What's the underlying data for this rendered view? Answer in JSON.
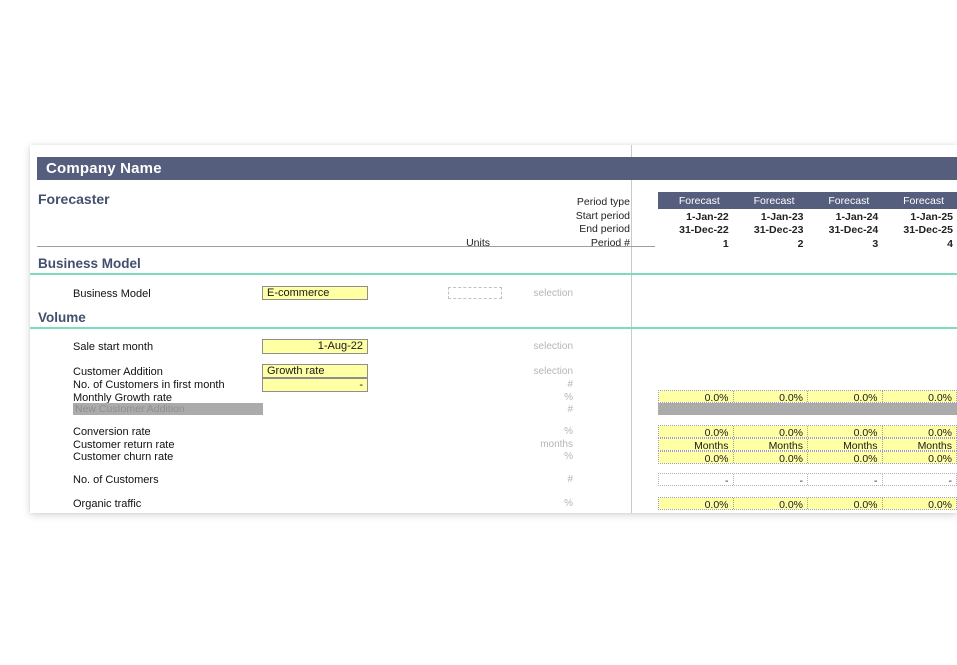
{
  "company": {
    "name": "Company Name"
  },
  "sheet": {
    "title": "Forecaster"
  },
  "period_header": {
    "labels": {
      "period_type": "Period type",
      "start_period": "Start period",
      "end_period": "End period",
      "period_num": "Period #",
      "units": "Units"
    },
    "period_type": [
      "Forecast",
      "Forecast",
      "Forecast",
      "Forecast"
    ],
    "start_period": [
      "1-Jan-22",
      "1-Jan-23",
      "1-Jan-24",
      "1-Jan-25"
    ],
    "end_period": [
      "31-Dec-22",
      "31-Dec-23",
      "31-Dec-24",
      "31-Dec-25"
    ],
    "period_num": [
      "1",
      "2",
      "3",
      "4"
    ]
  },
  "sections": {
    "business_model": "Business Model",
    "volume": "Volume"
  },
  "rows": {
    "business_model": {
      "label": "Business Model",
      "value": "E-commerce",
      "unit": "selection"
    },
    "sale_start_month": {
      "label": "Sale start month",
      "value": "1-Aug-22",
      "unit": "selection"
    },
    "customer_addition": {
      "label": "Customer Addition",
      "value": "Growth rate",
      "unit": "selection"
    },
    "customers_first_month": {
      "label": "No. of Customers in first month",
      "value": "-",
      "unit": "#"
    },
    "monthly_growth_rate": {
      "label": "Monthly Growth rate",
      "unit": "%",
      "values": [
        "0.0%",
        "0.0%",
        "0.0%",
        "0.0%"
      ]
    },
    "new_customer_addition": {
      "label": "New Customer Addition",
      "unit": "#"
    },
    "conversion_rate": {
      "label": "Conversion rate",
      "unit": "%",
      "values": [
        "0.0%",
        "0.0%",
        "0.0%",
        "0.0%"
      ]
    },
    "customer_return_rate": {
      "label": "Customer return rate",
      "unit": "months",
      "values": [
        "Months",
        "Months",
        "Months",
        "Months"
      ]
    },
    "customer_churn_rate": {
      "label": "Customer churn rate",
      "unit": "%",
      "values": [
        "0.0%",
        "0.0%",
        "0.0%",
        "0.0%"
      ]
    },
    "no_of_customers": {
      "label": "No. of Customers",
      "unit": "#",
      "values": [
        "-",
        "-",
        "-",
        "-"
      ]
    },
    "organic_traffic": {
      "label": "Organic traffic",
      "unit": "%",
      "values": [
        "0.0%",
        "0.0%",
        "0.0%",
        "0.0%"
      ]
    }
  },
  "colors": {
    "header_bar": "#565E7E",
    "section_accent": "#7EDCBE",
    "input_yellow": "#FFFFA3",
    "disabled_gray": "#ABABAB",
    "heading_text": "#424F6E"
  }
}
